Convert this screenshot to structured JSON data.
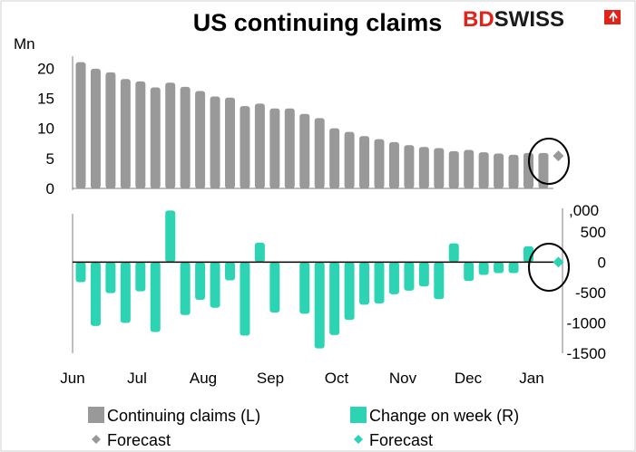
{
  "chart_data": [
    {
      "type": "bar",
      "title": "US continuing claims",
      "unit_label": "Mn",
      "ylim": [
        0,
        22
      ],
      "yticks": [
        0,
        5,
        10,
        15,
        20
      ],
      "x_month_labels": [
        "Jun",
        "Jul",
        "Aug",
        "Sep",
        "Oct",
        "Nov",
        "Dec",
        "Jan"
      ],
      "series": [
        {
          "name": "Continuing claims (L)",
          "color": "#999999",
          "values": [
            21.0,
            19.9,
            19.3,
            18.2,
            17.8,
            16.8,
            17.6,
            16.9,
            16.2,
            15.3,
            15.1,
            13.7,
            14.1,
            13.3,
            13.3,
            12.4,
            11.7,
            10.0,
            9.4,
            8.7,
            8.2,
            7.7,
            7.2,
            6.9,
            6.7,
            6.2,
            6.4,
            6.0,
            5.8,
            5.6,
            5.9,
            5.9
          ]
        },
        {
          "name": "Forecast",
          "type": "scatter",
          "marker": "diamond",
          "color": "#999999",
          "x_index": 32,
          "values": [
            5.4
          ]
        }
      ]
    },
    {
      "type": "bar",
      "unit_label": ",000",
      "ylim": [
        -1500,
        900
      ],
      "yticks": [
        -1500,
        -1000,
        -500,
        0,
        500
      ],
      "series": [
        {
          "name": "Change on week (R)",
          "color": "#2dd4b4",
          "values": [
            -330,
            -1050,
            -510,
            -1000,
            -480,
            -1150,
            850,
            -870,
            -620,
            -750,
            -300,
            -1210,
            320,
            -830,
            0,
            -850,
            -1420,
            -1200,
            -950,
            -700,
            -680,
            -530,
            -470,
            -400,
            -610,
            310,
            -310,
            -210,
            -180,
            -180,
            260
          ]
        },
        {
          "name": "Forecast",
          "type": "scatter",
          "marker": "diamond",
          "color": "#2dd4b4",
          "x_index": 32,
          "values": [
            0
          ]
        }
      ]
    }
  ],
  "brand": {
    "part1": "BD",
    "part2": "SWISS",
    "color_red": "#e2231a",
    "color_dark": "#1a1a1a"
  },
  "legend": [
    {
      "label": "Continuing claims (L)",
      "symbol": "square",
      "color": "#999999"
    },
    {
      "label": "Change on week (R)",
      "symbol": "square",
      "color": "#2dd4b4"
    },
    {
      "label": "Forecast",
      "symbol": "diamond",
      "color": "#999999"
    },
    {
      "label": "Forecast",
      "symbol": "diamond",
      "color": "#2dd4b4"
    }
  ]
}
